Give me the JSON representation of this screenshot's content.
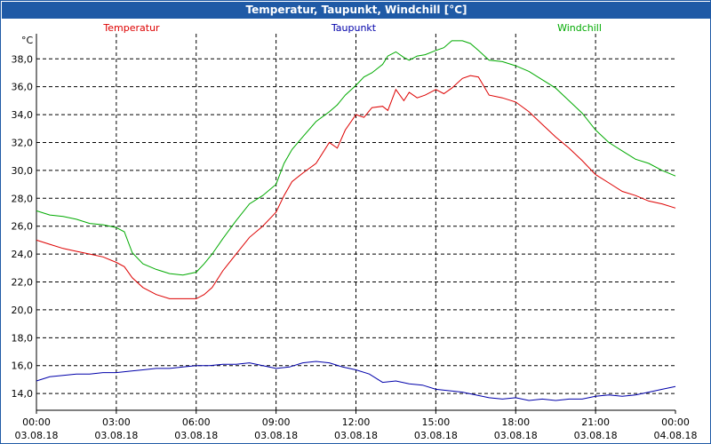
{
  "window": {
    "title": "Temperatur, Taupunkt, Windchill [°C]"
  },
  "chart_data": {
    "type": "line",
    "title": "Temperatur, Taupunkt, Windchill [°C]",
    "ylabel": "°C",
    "ylim": [
      12.8,
      39.8
    ],
    "yticks": [
      14,
      16,
      18,
      20,
      22,
      24,
      26,
      28,
      30,
      32,
      34,
      36,
      38
    ],
    "ytick_labels": [
      "14,0",
      "16,0",
      "18,0",
      "20,0",
      "22,0",
      "24,0",
      "26,0",
      "28,0",
      "30,0",
      "32,0",
      "34,0",
      "36,0",
      "38,0"
    ],
    "xlim_hours": [
      0,
      24
    ],
    "xticks": [
      {
        "h": 0,
        "time": "00:00",
        "date": "03.08.18"
      },
      {
        "h": 3,
        "time": "03:00",
        "date": "03.08.18"
      },
      {
        "h": 6,
        "time": "06:00",
        "date": "03.08.18"
      },
      {
        "h": 9,
        "time": "09:00",
        "date": "03.08.18"
      },
      {
        "h": 12,
        "time": "12:00",
        "date": "03.08.18"
      },
      {
        "h": 15,
        "time": "15:00",
        "date": "03.08.18"
      },
      {
        "h": 18,
        "time": "18:00",
        "date": "03.08.18"
      },
      {
        "h": 21,
        "time": "21:00",
        "date": "03.08.18"
      },
      {
        "h": 24,
        "time": "00:00",
        "date": "04.08.18"
      }
    ],
    "grid": true,
    "series": [
      {
        "name": "Temperatur",
        "color": "#dd0000",
        "x": [
          0,
          0.5,
          1,
          1.5,
          2,
          2.5,
          3,
          3.3,
          3.6,
          4,
          4.5,
          5,
          5.5,
          6,
          6.3,
          6.6,
          7,
          7.5,
          8,
          8.5,
          9,
          9.3,
          9.6,
          10,
          10.5,
          11,
          11.3,
          11.6,
          12,
          12.3,
          12.6,
          13,
          13.2,
          13.5,
          13.8,
          14,
          14.3,
          14.6,
          15,
          15.3,
          15.6,
          16,
          16.3,
          16.6,
          17,
          17.5,
          18,
          18.5,
          19,
          19.5,
          20,
          20.5,
          21,
          21.5,
          22,
          22.5,
          23,
          23.5,
          24
        ],
        "values": [
          25.0,
          24.7,
          24.4,
          24.2,
          24.0,
          23.8,
          23.4,
          23.1,
          22.3,
          21.6,
          21.1,
          20.8,
          20.8,
          20.8,
          21.1,
          21.6,
          22.8,
          24.0,
          25.2,
          26.0,
          27.0,
          28.2,
          29.2,
          29.8,
          30.5,
          32.0,
          31.6,
          32.9,
          34.0,
          33.8,
          34.5,
          34.6,
          34.3,
          35.8,
          35.0,
          35.6,
          35.2,
          35.4,
          35.8,
          35.5,
          35.9,
          36.6,
          36.8,
          36.7,
          35.4,
          35.2,
          34.9,
          34.2,
          33.3,
          32.4,
          31.6,
          30.7,
          29.7,
          29.1,
          28.5,
          28.2,
          27.8,
          27.6,
          27.3
        ]
      },
      {
        "name": "Taupunkt",
        "color": "#0000aa",
        "x": [
          0,
          0.5,
          1,
          1.5,
          2,
          2.5,
          3,
          3.5,
          4,
          4.5,
          5,
          5.5,
          6,
          6.5,
          7,
          7.5,
          8,
          8.5,
          9,
          9.5,
          10,
          10.5,
          11,
          11.5,
          12,
          12.5,
          13,
          13.5,
          14,
          14.5,
          15,
          15.5,
          16,
          16.5,
          17,
          17.5,
          18,
          18.5,
          19,
          19.5,
          20,
          20.5,
          21,
          21.5,
          22,
          22.5,
          23,
          23.5,
          24
        ],
        "values": [
          14.9,
          15.2,
          15.3,
          15.4,
          15.4,
          15.5,
          15.5,
          15.6,
          15.7,
          15.8,
          15.8,
          15.9,
          16.0,
          16.0,
          16.1,
          16.1,
          16.2,
          16.0,
          15.8,
          15.9,
          16.2,
          16.3,
          16.2,
          15.9,
          15.7,
          15.4,
          14.8,
          14.9,
          14.7,
          14.6,
          14.3,
          14.2,
          14.1,
          13.9,
          13.7,
          13.6,
          13.7,
          13.5,
          13.6,
          13.5,
          13.6,
          13.6,
          13.8,
          13.9,
          13.8,
          13.9,
          14.1,
          14.3,
          14.5
        ]
      },
      {
        "name": "Windchill",
        "color": "#00aa00",
        "x": [
          0,
          0.5,
          1,
          1.5,
          2,
          2.5,
          3,
          3.3,
          3.6,
          4,
          4.5,
          5,
          5.5,
          6,
          6.3,
          6.6,
          7,
          7.5,
          8,
          8.5,
          9,
          9.3,
          9.6,
          10,
          10.5,
          11,
          11.3,
          11.6,
          12,
          12.3,
          12.6,
          13,
          13.2,
          13.5,
          13.8,
          14,
          14.3,
          14.6,
          15,
          15.3,
          15.6,
          16,
          16.3,
          16.6,
          17,
          17.5,
          18,
          18.5,
          19,
          19.5,
          20,
          20.5,
          21,
          21.5,
          22,
          22.5,
          23,
          23.5,
          24
        ],
        "values": [
          27.1,
          26.8,
          26.7,
          26.5,
          26.2,
          26.1,
          25.9,
          25.6,
          24.1,
          23.3,
          22.9,
          22.6,
          22.5,
          22.7,
          23.3,
          24.0,
          25.1,
          26.4,
          27.6,
          28.2,
          29.0,
          30.5,
          31.5,
          32.4,
          33.5,
          34.2,
          34.7,
          35.4,
          36.1,
          36.7,
          37.0,
          37.6,
          38.2,
          38.5,
          38.1,
          37.9,
          38.2,
          38.3,
          38.6,
          38.8,
          39.3,
          39.3,
          39.1,
          38.6,
          37.9,
          37.8,
          37.5,
          37.1,
          36.5,
          35.9,
          35.0,
          34.1,
          32.9,
          32.0,
          31.4,
          30.8,
          30.5,
          30.0,
          29.6
        ]
      }
    ]
  }
}
